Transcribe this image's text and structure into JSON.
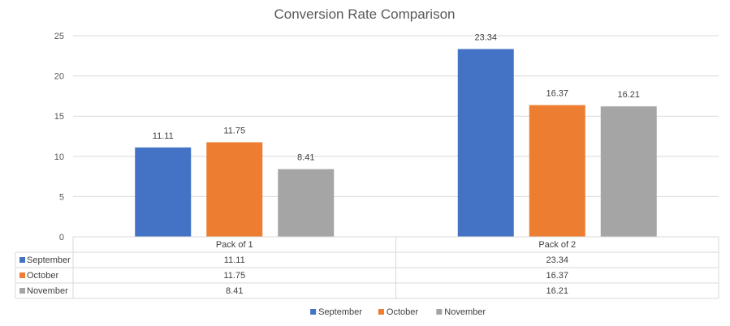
{
  "chart_data": {
    "type": "bar",
    "title": "Conversion Rate Comparison",
    "categories": [
      "Pack of 1",
      "Pack of 2"
    ],
    "series": [
      {
        "name": "September",
        "values": [
          11.11,
          23.34
        ],
        "color": "#4472C4"
      },
      {
        "name": "October",
        "values": [
          11.75,
          16.37
        ],
        "color": "#ED7D31"
      },
      {
        "name": "November",
        "values": [
          8.41,
          16.21
        ],
        "color": "#A5A5A5"
      }
    ],
    "ylim": [
      0,
      25
    ],
    "yticks": [
      0,
      5,
      10,
      15,
      20,
      25
    ],
    "xlabel": "",
    "ylabel": "",
    "grid": true,
    "legend": "bottom",
    "data_table": true
  }
}
